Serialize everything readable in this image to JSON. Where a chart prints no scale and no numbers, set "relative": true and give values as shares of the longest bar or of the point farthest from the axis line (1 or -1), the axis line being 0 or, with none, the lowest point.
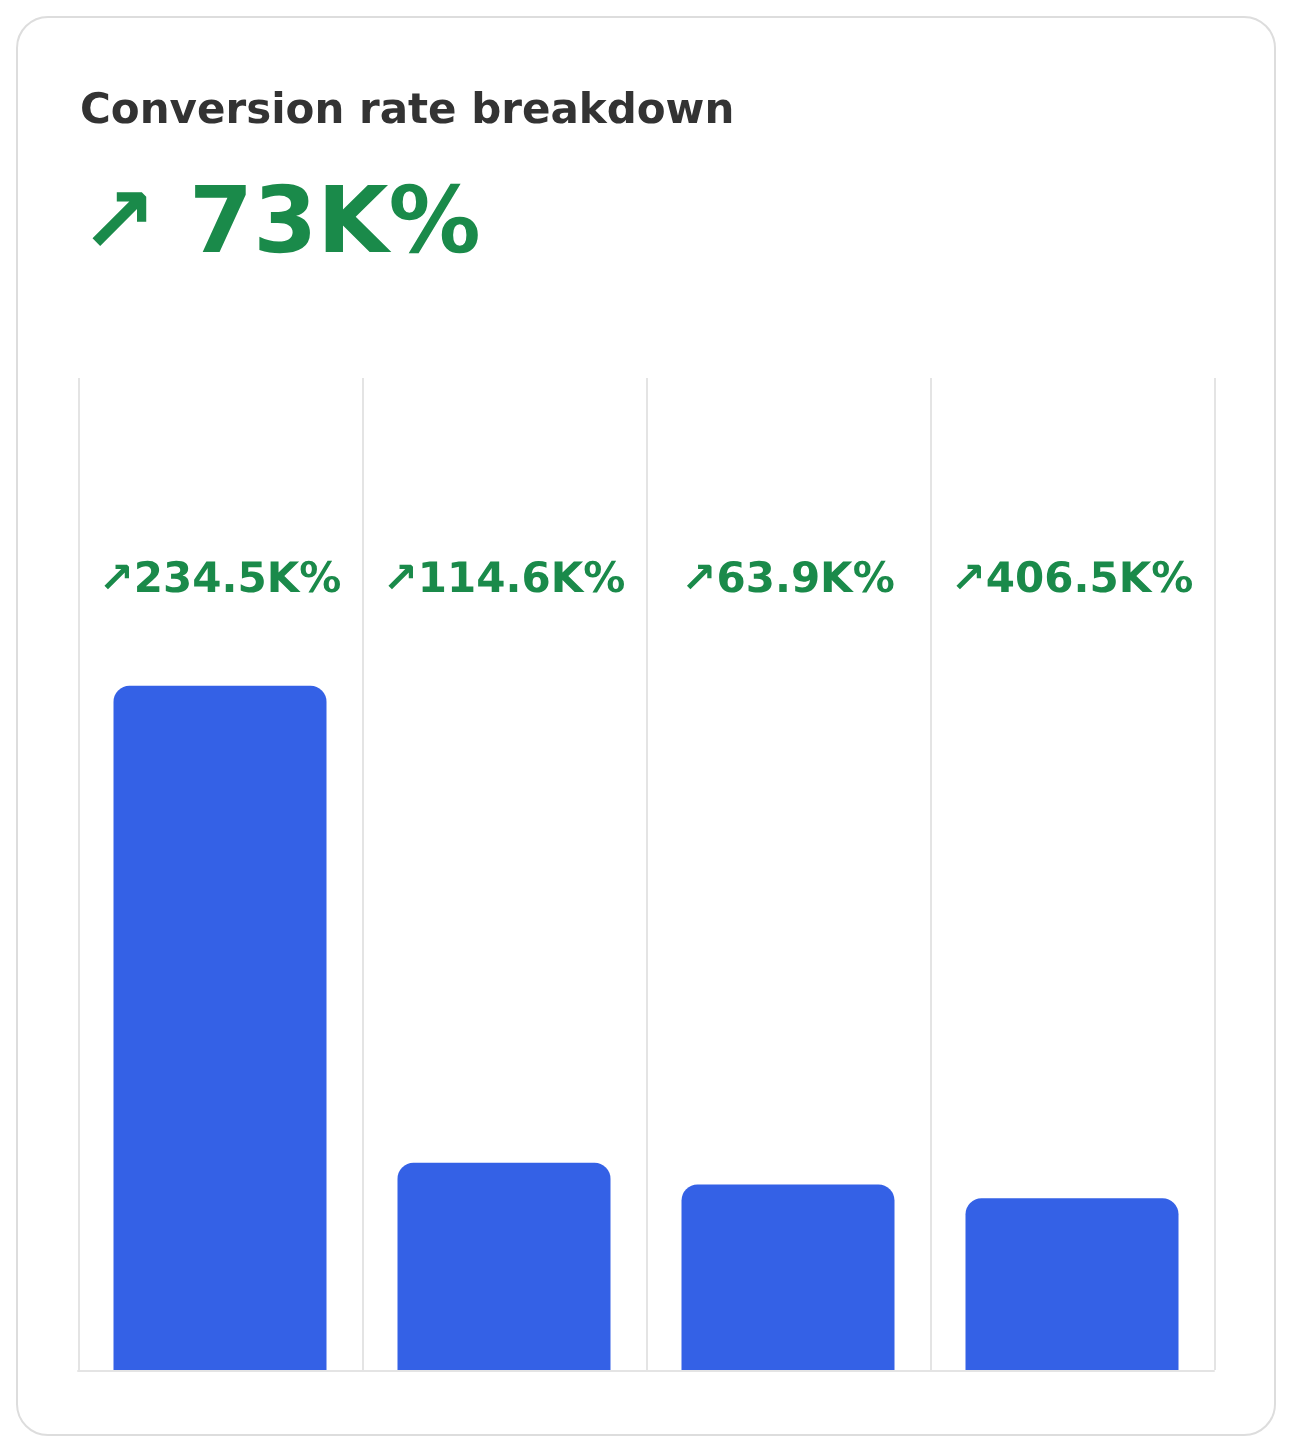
{
  "chart_data": {
    "type": "bar",
    "title": "Conversion rate breakdown",
    "subtitle": "↗ 73K%",
    "categories": [
      null,
      null,
      null,
      null
    ],
    "values": [
      1,
      0.303,
      0.271,
      0.251
    ],
    "annotations": [
      "↗234.5K%",
      "↗114.6K%",
      "↗63.9K%",
      "↗406.5K%"
    ],
    "color": "#3461e6",
    "relative": true,
    "grid": "x"
  }
}
